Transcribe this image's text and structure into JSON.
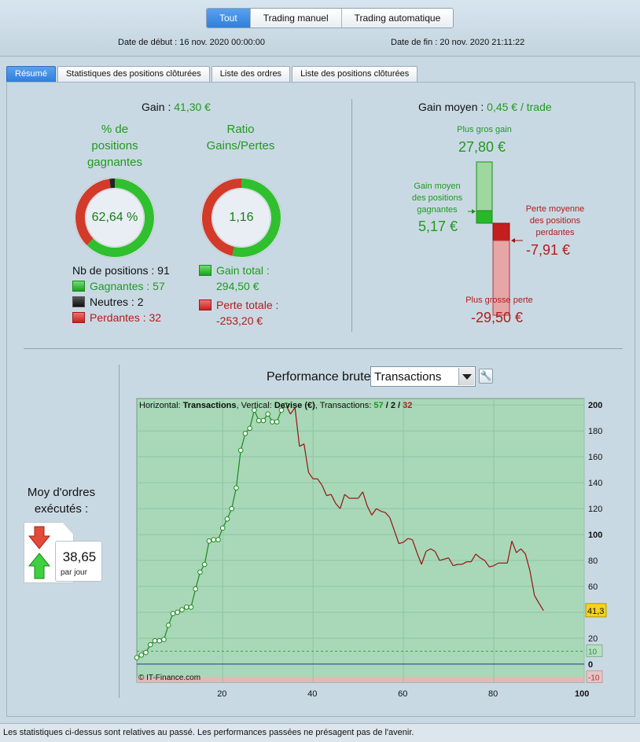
{
  "top": {
    "tabs": [
      "Tout",
      "Trading manuel",
      "Trading automatique"
    ],
    "start_label": "Date de début :",
    "start_value": "16 nov. 2020 00:00:00",
    "end_label": "Date de fin :",
    "end_value": "20 nov. 2020 21:11:22"
  },
  "tabs": [
    "Résumé",
    "Statistiques des positions clôturées",
    "Liste des ordres",
    "Liste des positions clôturées"
  ],
  "summary": {
    "gain_label": "Gain :",
    "gain_value": "41,30 €",
    "win_pct_title": [
      "% de",
      "positions",
      "gagnantes"
    ],
    "win_pct_value": "62,64 %",
    "ratio_title": [
      "Ratio",
      "Gains/Pertes"
    ],
    "ratio_value": "1,16",
    "nb_positions_label": "Nb de positions : 91",
    "gagnantes_label": "Gagnantes : 57",
    "neutres_label": "Neutres : 2",
    "perdantes_label": "Perdantes : 32",
    "gain_total_label": "Gain total :",
    "gain_total_value": "294,50 €",
    "perte_totale_label": "Perte totale :",
    "perte_totale_value": "-253,20 €",
    "win_fraction": 0.6264,
    "neutral_fraction": 0.022,
    "ratio_fraction": 0.538,
    "colors": {
      "green": "#2fbf2f",
      "red": "#d23a2a",
      "black": "#222222"
    }
  },
  "right": {
    "gain_moyen_label": "Gain moyen :",
    "gain_moyen_value": "0,45 € / trade",
    "plus_gros_gain_label": "Plus gros gain",
    "plus_gros_gain_value": "27,80 €",
    "gain_moyen_pos_label": [
      "Gain moyen",
      "des positions",
      "gagnantes"
    ],
    "gain_moyen_pos_value": "5,17 €",
    "perte_moyenne_label": [
      "Perte moyenne",
      "des positions",
      "perdantes"
    ],
    "perte_moyenne_value": "-7,91 €",
    "plus_grosse_perte_label": "Plus grosse perte",
    "plus_grosse_perte_value": "-29,50 €"
  },
  "bottom": {
    "moy_label": [
      "Moy d'ordres",
      "exécutés :"
    ],
    "moy_value": "38,65",
    "moy_unit": "par jour",
    "perf_title": "Performance brute",
    "select_value": "Transactions"
  },
  "chart_data": {
    "type": "line",
    "header_prefix": "Horizontal:",
    "header_h": "Transactions",
    "header_mid": ", Vertical:",
    "header_v": "Devise (€)",
    "header_tx": ", Transactions:",
    "header_g": "57",
    "header_sep1": "/",
    "header_n": "2",
    "header_sep2": "/",
    "header_p": "32",
    "xlim": [
      1,
      100
    ],
    "ylim": [
      -14,
      205
    ],
    "x_ticks": [
      20,
      40,
      60,
      80,
      100
    ],
    "y_ticks": [
      -10,
      0,
      10,
      20,
      40,
      60,
      80,
      100,
      120,
      140,
      160,
      180,
      200
    ],
    "y_tick_labels": [
      "-10",
      "0",
      "10",
      "20",
      "40",
      "60",
      "80",
      "100",
      "120",
      "140",
      "160",
      "180",
      "200"
    ],
    "x_tick_labels": [
      "20",
      "40",
      "60",
      "80",
      "100"
    ],
    "last_value_label": "41,3",
    "copyright": "© IT-Finance.com",
    "threshold_pos": 10,
    "threshold_neg": -10,
    "colors": {
      "up": "#1a8a1a",
      "down": "#9a1010",
      "fill": "#a8d8b8",
      "neg_fill": "#e6b7b7",
      "zero": "#2233aa"
    },
    "series": [
      {
        "values": [
          5,
          7,
          9,
          15,
          18,
          18,
          19,
          30,
          39,
          40,
          42,
          44,
          44,
          58,
          71,
          77,
          95,
          96,
          96,
          105,
          112,
          120,
          136,
          165,
          178,
          182,
          196,
          188,
          188,
          193,
          187,
          187,
          196,
          200,
          193,
          198,
          168,
          170,
          148,
          143,
          143,
          138,
          130,
          131,
          124,
          120,
          131,
          128,
          128,
          128,
          133,
          122,
          115,
          120,
          118,
          117,
          113,
          103,
          93,
          94,
          97,
          96,
          86,
          77,
          87,
          89,
          87,
          80,
          81,
          82,
          76,
          77,
          77,
          79,
          79,
          85,
          82,
          80,
          75,
          76,
          78,
          78,
          78,
          95,
          86,
          89,
          85,
          72,
          53,
          47,
          41.3
        ]
      }
    ]
  }
}
